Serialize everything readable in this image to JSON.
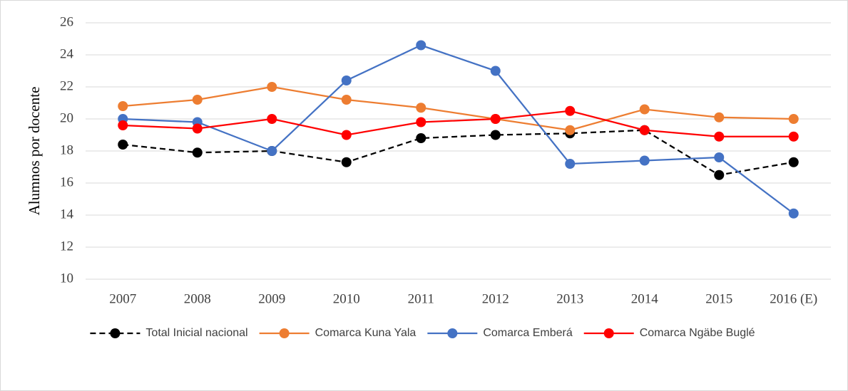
{
  "chart_data": {
    "type": "line",
    "y_label": "Alumnos por docente",
    "categories": [
      "2007",
      "2008",
      "2009",
      "2010",
      "2011",
      "2012",
      "2013",
      "2014",
      "2015",
      "2016 (E)"
    ],
    "series": [
      {
        "name": "Total Inicial nacional",
        "color": "#000000",
        "dash": true,
        "values": [
          18.4,
          17.9,
          18.0,
          17.3,
          18.8,
          19.0,
          19.1,
          19.3,
          16.5,
          17.3
        ]
      },
      {
        "name": "Comarca Kuna Yala",
        "color": "#ed7d31",
        "dash": false,
        "values": [
          20.8,
          21.2,
          22.0,
          21.2,
          20.7,
          20.0,
          19.3,
          20.6,
          20.1,
          20.0
        ]
      },
      {
        "name": "Comarca Emberá",
        "color": "#4472c4",
        "dash": false,
        "values": [
          20.0,
          19.8,
          18.0,
          22.4,
          24.6,
          23.0,
          17.2,
          17.4,
          17.6,
          14.1
        ]
      },
      {
        "name": "Comarca Ngäbe Buglé",
        "color": "#ff0000",
        "dash": false,
        "values": [
          19.6,
          19.4,
          20.0,
          19.0,
          19.8,
          20.0,
          20.5,
          19.3,
          18.9,
          18.9
        ]
      }
    ],
    "ylim": [
      10,
      26
    ],
    "yticks": [
      10,
      12,
      14,
      16,
      18,
      20,
      22,
      24,
      26
    ],
    "grid": true,
    "legend": "bottom"
  }
}
